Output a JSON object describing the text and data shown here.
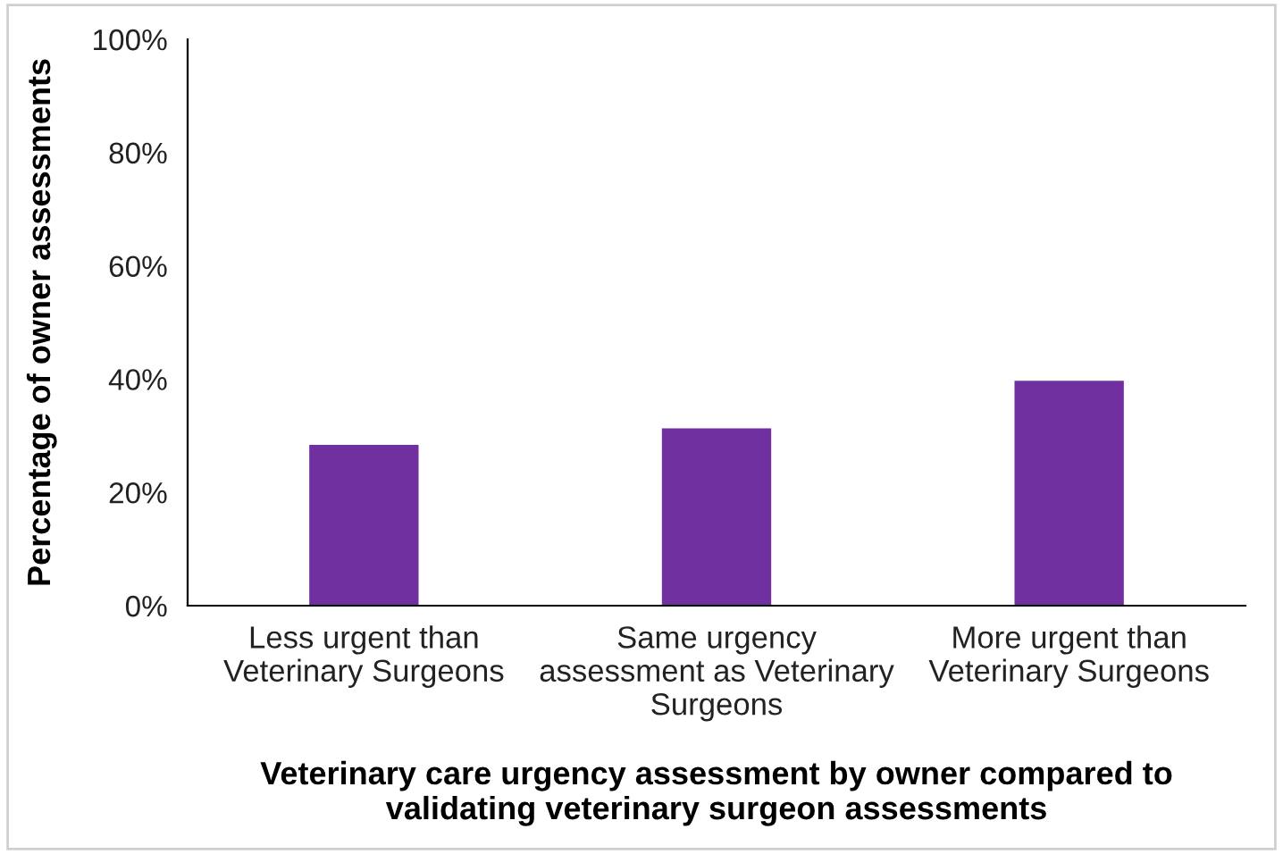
{
  "chart_data": {
    "type": "bar",
    "categories": [
      "Less urgent than\nVeterinary Surgeons",
      "Same urgency\nassessment as Veterinary\nSurgeons",
      "More urgent than\nVeterinary Surgeons"
    ],
    "values": [
      28.4,
      31.3,
      39.7
    ],
    "color": "#7030a0",
    "xlabel": "Veterinary care urgency assessment by owner compared to\nvalidating veterinary surgeon assessments",
    "ylabel": "Percentage of owner assessments",
    "ylim": [
      0,
      100
    ],
    "yticks": [
      {
        "value": 0,
        "label": "0%"
      },
      {
        "value": 20,
        "label": "20%"
      },
      {
        "value": 40,
        "label": "40%"
      },
      {
        "value": 60,
        "label": "60%"
      },
      {
        "value": 80,
        "label": "80%"
      },
      {
        "value": 100,
        "label": "100%"
      }
    ],
    "grid": false
  }
}
